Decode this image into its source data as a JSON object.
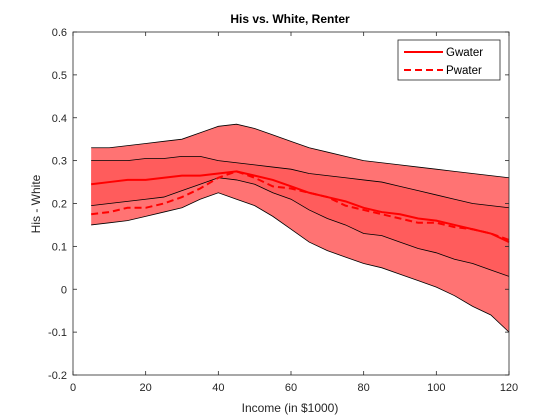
{
  "chart_data": {
    "type": "area",
    "title": "His vs. White, Renter",
    "xlabel": "Income (in $1000)",
    "ylabel": "His - White",
    "xlim": [
      0,
      120
    ],
    "ylim": [
      -0.2,
      0.6
    ],
    "xticks": [
      0,
      20,
      40,
      60,
      80,
      100,
      120
    ],
    "yticks": [
      -0.2,
      -0.1,
      0,
      0.1,
      0.2,
      0.3,
      0.4,
      0.5,
      0.6
    ],
    "xtick_labels": [
      "0",
      "20",
      "40",
      "60",
      "80",
      "100",
      "120"
    ],
    "ytick_labels": [
      "-0.2",
      "-0.1",
      "0",
      "0.1",
      "0.2",
      "0.3",
      "0.4",
      "0.5",
      "0.6"
    ],
    "grid": false,
    "legend_position": "top-right",
    "x": [
      5,
      10,
      15,
      20,
      25,
      30,
      35,
      40,
      45,
      50,
      55,
      60,
      65,
      70,
      75,
      80,
      85,
      90,
      95,
      100,
      105,
      110,
      115,
      120
    ],
    "series": [
      {
        "name": "Gwater",
        "style": "solid",
        "color": "#ff0000",
        "values": [
          0.245,
          0.25,
          0.255,
          0.255,
          0.26,
          0.265,
          0.265,
          0.27,
          0.275,
          0.265,
          0.255,
          0.24,
          0.225,
          0.215,
          0.205,
          0.19,
          0.18,
          0.175,
          0.165,
          0.16,
          0.15,
          0.14,
          0.13,
          0.11
        ]
      },
      {
        "name": "Pwater",
        "style": "dashed",
        "color": "#ff0000",
        "values": [
          0.175,
          0.18,
          0.19,
          0.19,
          0.2,
          0.215,
          0.235,
          0.26,
          0.275,
          0.26,
          0.24,
          0.235,
          0.225,
          0.215,
          0.195,
          0.185,
          0.175,
          0.165,
          0.155,
          0.155,
          0.145,
          0.14,
          0.13,
          0.115
        ]
      }
    ],
    "bands": [
      {
        "lower": [
          0.195,
          0.2,
          0.205,
          0.21,
          0.215,
          0.23,
          0.245,
          0.26,
          0.255,
          0.245,
          0.225,
          0.21,
          0.185,
          0.165,
          0.15,
          0.13,
          0.125,
          0.11,
          0.095,
          0.085,
          0.07,
          0.06,
          0.045,
          0.03
        ],
        "upper": [
          0.3,
          0.3,
          0.3,
          0.305,
          0.305,
          0.31,
          0.31,
          0.3,
          0.295,
          0.29,
          0.285,
          0.28,
          0.27,
          0.265,
          0.26,
          0.255,
          0.25,
          0.24,
          0.23,
          0.22,
          0.21,
          0.2,
          0.195,
          0.19
        ]
      },
      {
        "lower": [
          0.15,
          0.155,
          0.16,
          0.17,
          0.18,
          0.19,
          0.21,
          0.225,
          0.21,
          0.195,
          0.17,
          0.14,
          0.11,
          0.09,
          0.075,
          0.06,
          0.05,
          0.035,
          0.02,
          0.005,
          -0.015,
          -0.04,
          -0.06,
          -0.1
        ],
        "upper": [
          0.33,
          0.33,
          0.335,
          0.34,
          0.345,
          0.35,
          0.365,
          0.38,
          0.385,
          0.375,
          0.36,
          0.345,
          0.33,
          0.32,
          0.31,
          0.3,
          0.295,
          0.29,
          0.285,
          0.28,
          0.275,
          0.27,
          0.265,
          0.26
        ]
      }
    ],
    "band_color": "#ff5a5a"
  }
}
